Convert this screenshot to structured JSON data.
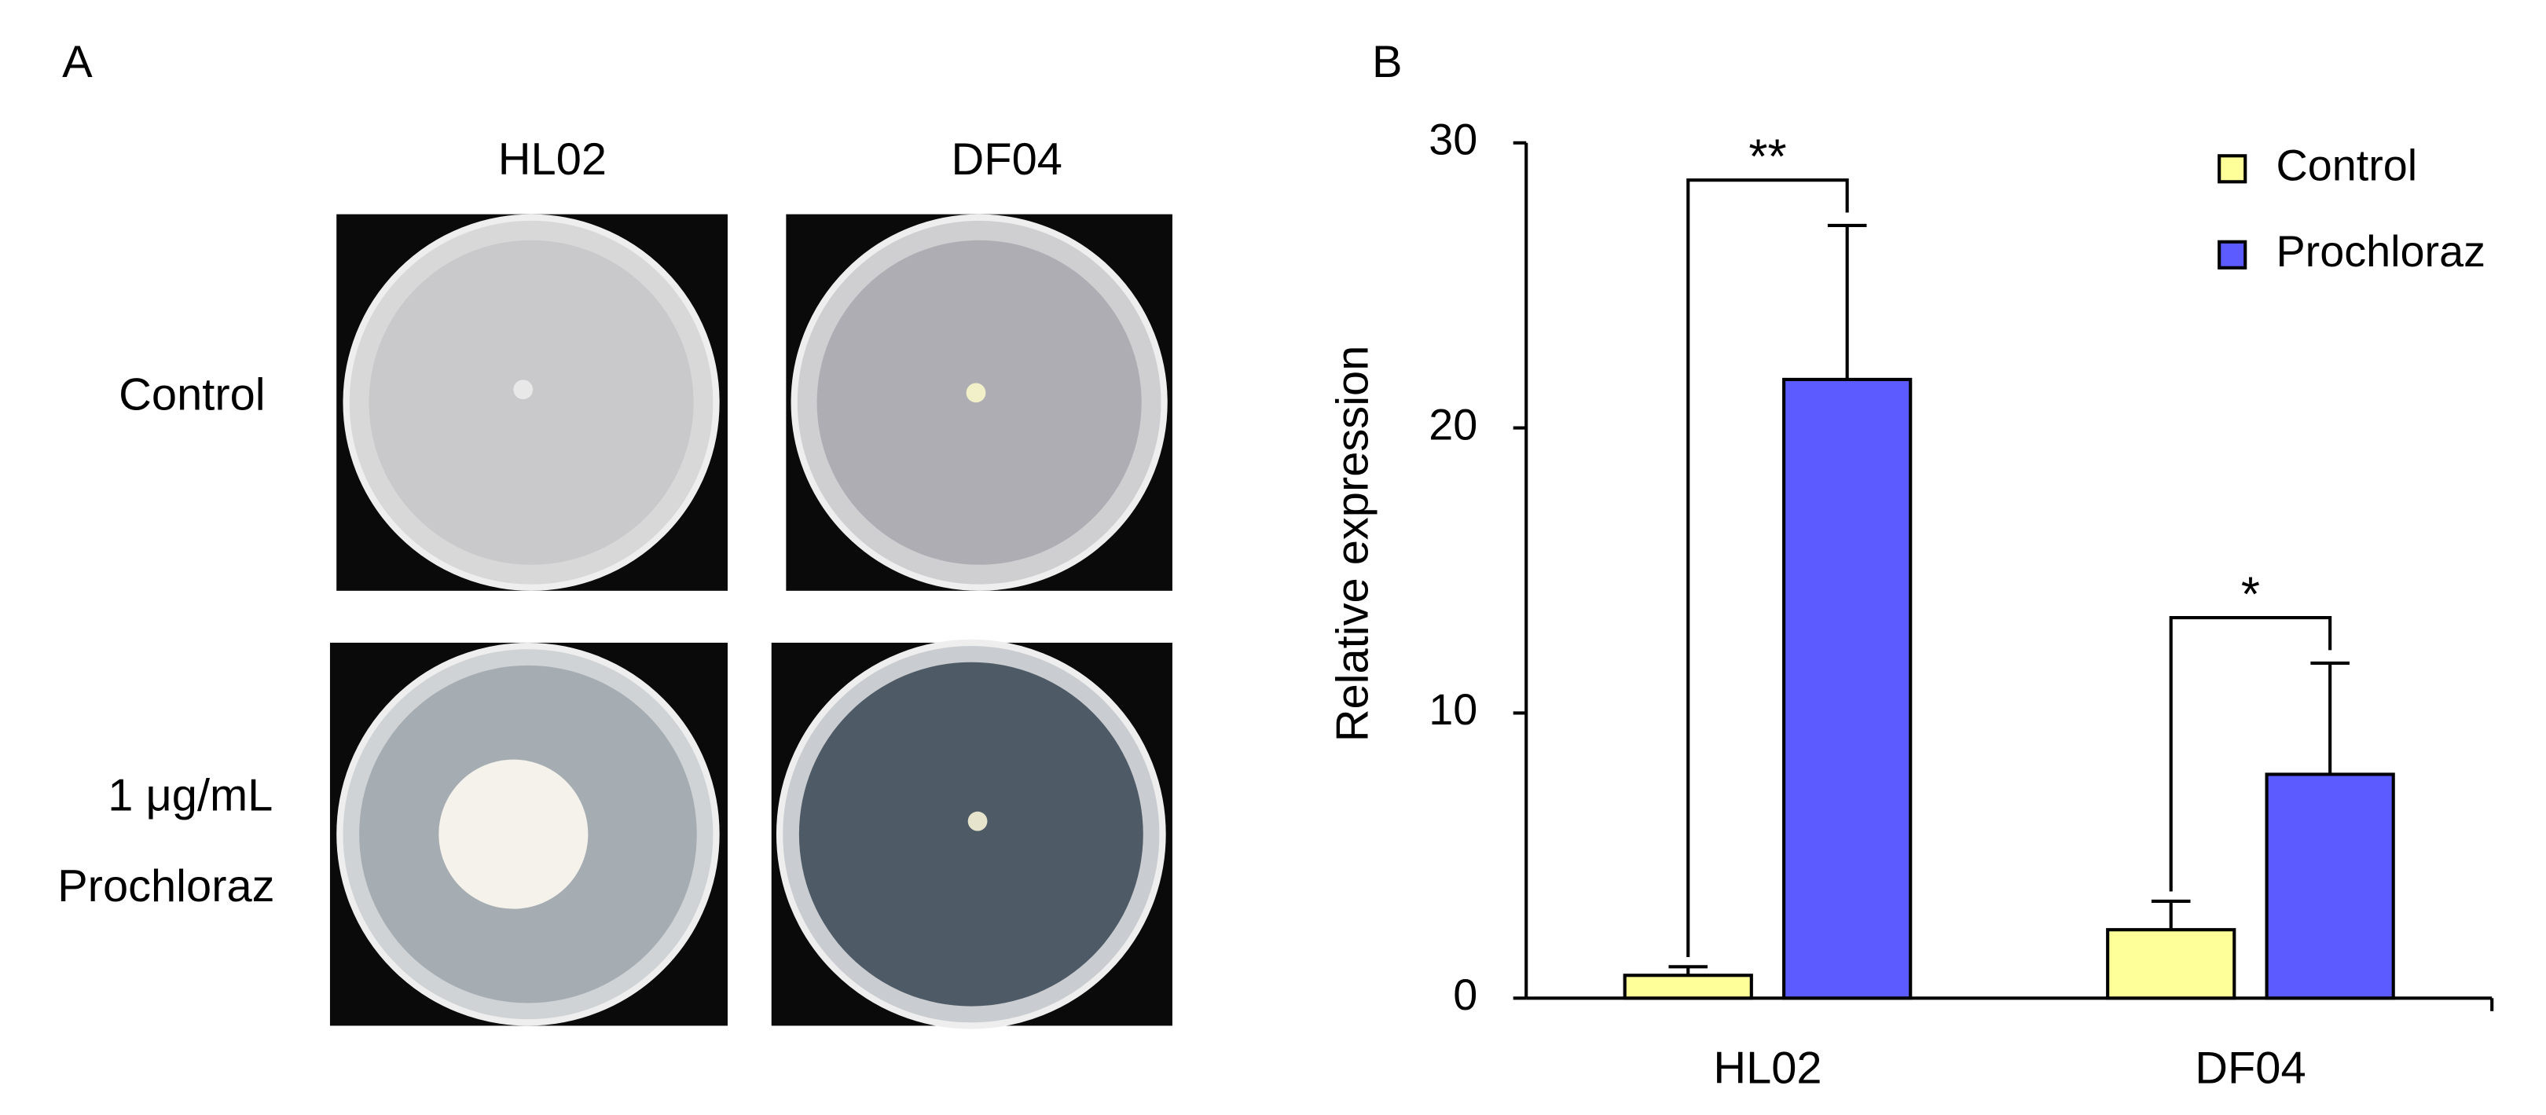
{
  "panel_a": {
    "label": "A",
    "columns": [
      "HL02",
      "DF04"
    ],
    "rows": [
      "Control",
      "1 μg/mL",
      "Prochloraz"
    ]
  },
  "chart_data": {
    "type": "bar",
    "label": "B",
    "y_label": "Relative expression",
    "categories": [
      "HL02",
      "DF04"
    ],
    "series": [
      {
        "name": "Control",
        "color": "#ffff99",
        "values": [
          0.8,
          2.4
        ],
        "errors": [
          0.3,
          1.0
        ]
      },
      {
        "name": "Prochloraz",
        "color": "#5b5bff",
        "values": [
          21.7,
          7.85
        ],
        "errors": [
          5.4,
          3.9
        ]
      }
    ],
    "annotations": [
      "**",
      "*"
    ],
    "ylim": [
      0,
      30
    ],
    "yticks": [
      0,
      10,
      20,
      30
    ],
    "grid": false,
    "legend": "upper right"
  }
}
